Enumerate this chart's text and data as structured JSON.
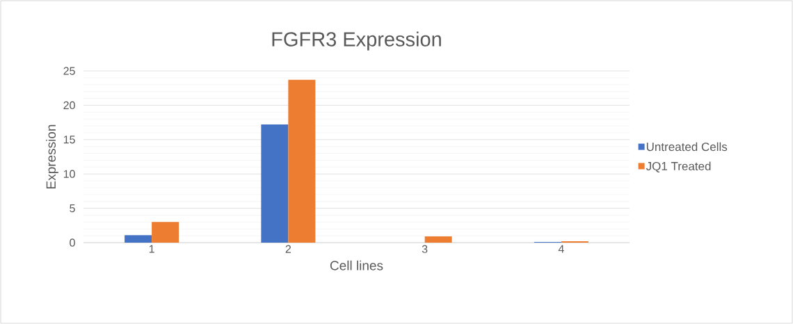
{
  "chart_data": {
    "type": "bar",
    "title": "FGFR3 Expression",
    "xlabel": "Cell lines",
    "ylabel": "Expression",
    "categories": [
      "1",
      "2",
      "3",
      "4"
    ],
    "series": [
      {
        "name": "Untreated Cells",
        "color": "#4472c4",
        "values": [
          1.1,
          17.2,
          0,
          0.1
        ]
      },
      {
        "name": "JQ1 Treated",
        "color": "#ed7d31",
        "values": [
          3.0,
          23.7,
          0.9,
          0.2
        ]
      }
    ],
    "ylim": [
      0,
      25
    ],
    "yticks": [
      0,
      5,
      10,
      15,
      20,
      25
    ],
    "grid": "y",
    "legend": "right"
  }
}
